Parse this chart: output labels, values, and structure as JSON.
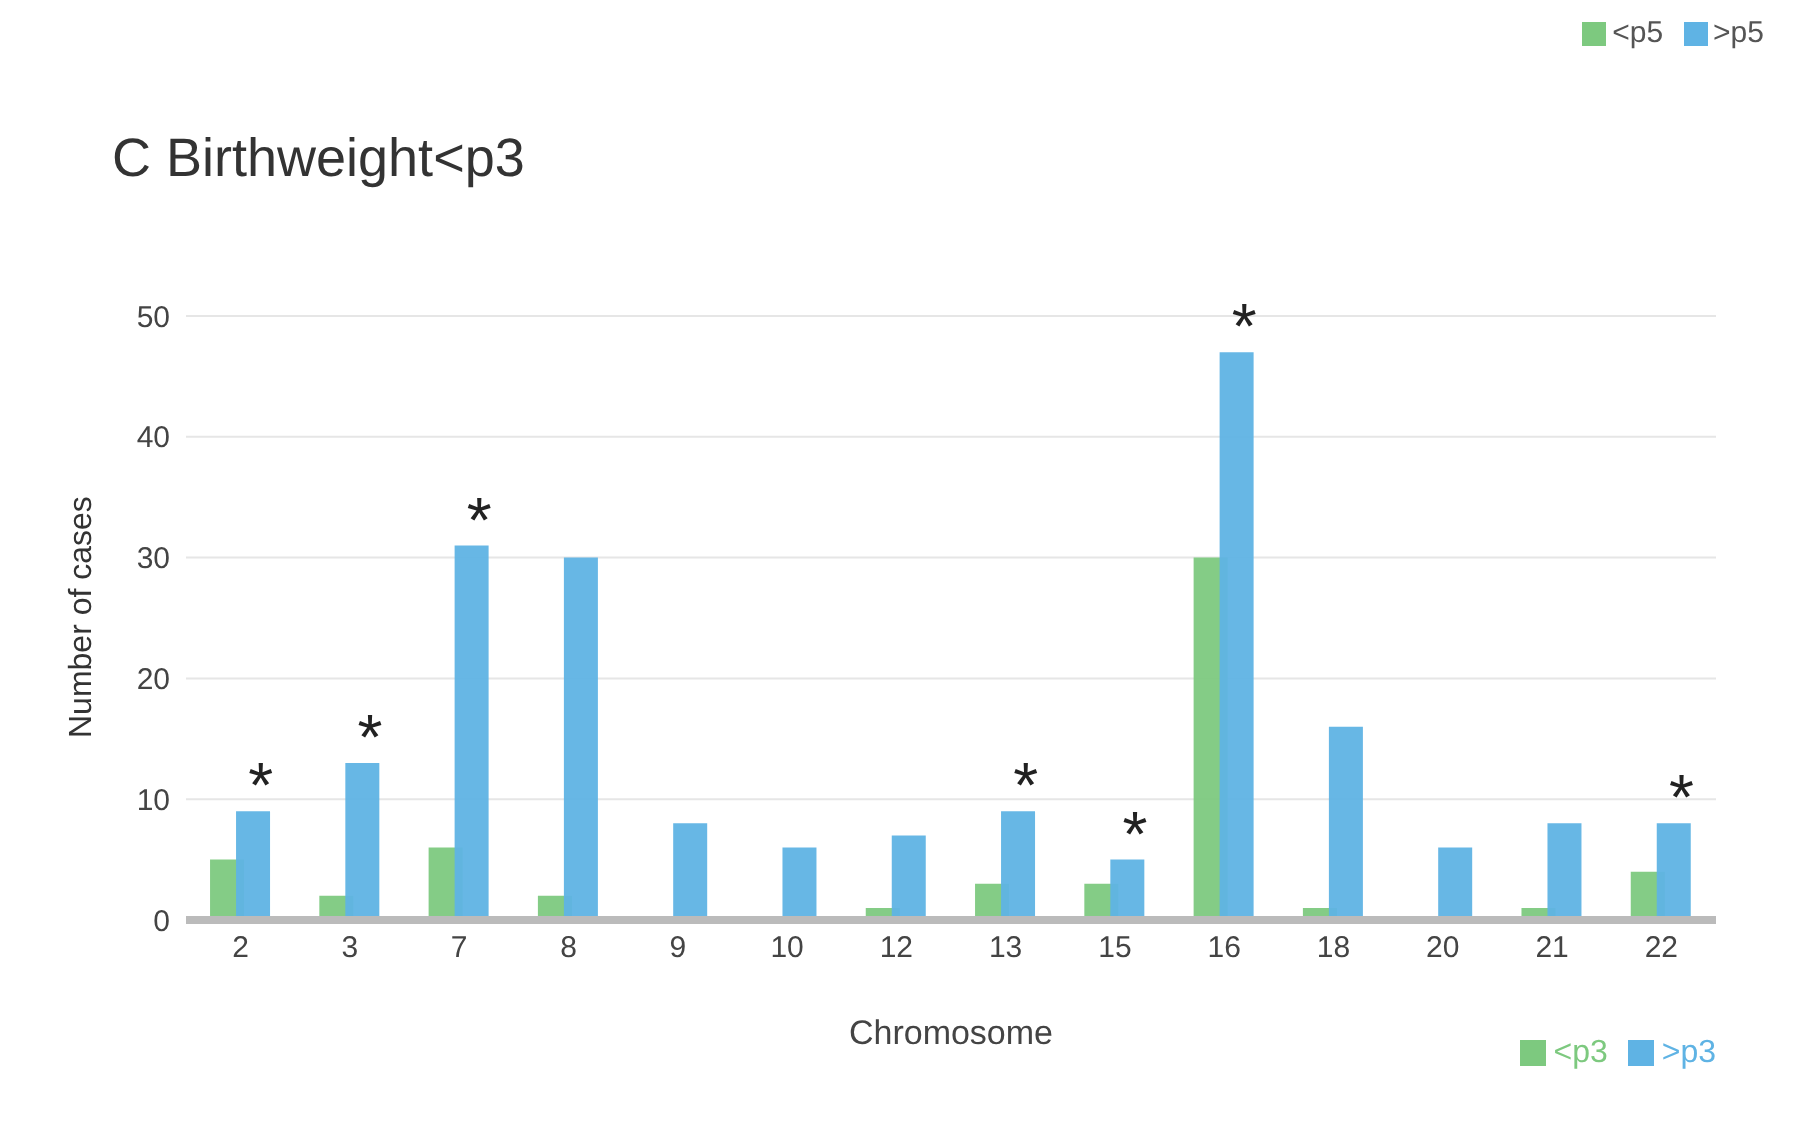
{
  "chart_data": {
    "type": "bar",
    "title": "C Birthweight<p3",
    "xlabel": "Chromosome",
    "ylabel": "Number of cases",
    "categories": [
      "2",
      "3",
      "7",
      "8",
      "9",
      "10",
      "12",
      "13",
      "15",
      "16",
      "18",
      "20",
      "21",
      "22"
    ],
    "series": [
      {
        "name": "<p3",
        "color": "#7dc97f",
        "values": [
          5,
          2,
          6,
          2,
          0,
          0,
          1,
          3,
          3,
          30,
          1,
          0,
          1,
          4
        ]
      },
      {
        "name": ">p3",
        "color": "#5fb3e4",
        "values": [
          9,
          13,
          31,
          30,
          8,
          6,
          7,
          9,
          5,
          47,
          16,
          6,
          8,
          8
        ]
      }
    ],
    "ylim": [
      0,
      50
    ],
    "yticks": [
      0,
      10,
      20,
      30,
      40,
      50
    ],
    "grid": "y",
    "legend": "bottom right",
    "annotations": [
      {
        "text": "*",
        "x": "2",
        "y": 9
      },
      {
        "text": "*",
        "x": "3",
        "y": 13
      },
      {
        "text": "*",
        "x": "7",
        "y": 31
      },
      {
        "text": "*",
        "x": "13",
        "y": 9
      },
      {
        "text": "*",
        "x": "15",
        "y": 5
      },
      {
        "text": "*",
        "x": "16",
        "y": 47
      },
      {
        "text": "*",
        "x": "22",
        "y": 8
      },
      "<p5",
      ">p5"
    ]
  }
}
